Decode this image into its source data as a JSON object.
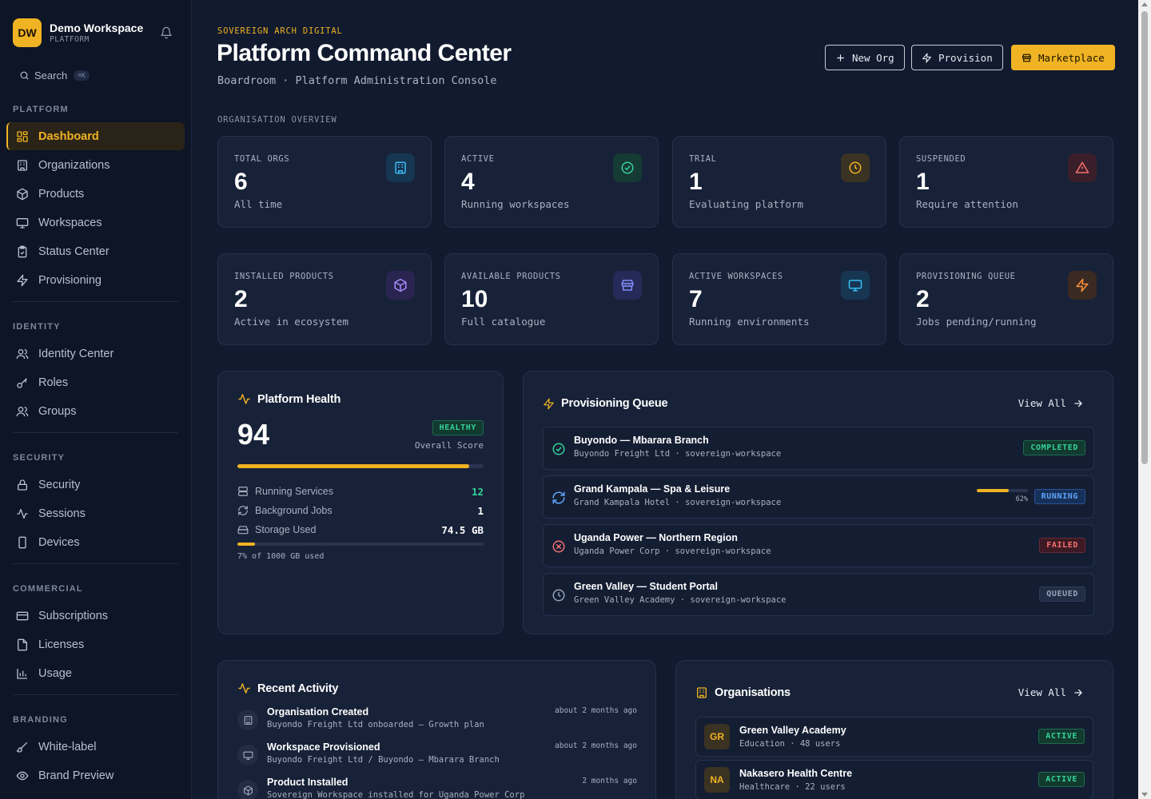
{
  "workspace": {
    "initials": "DW",
    "name": "Demo Workspace",
    "sub": "PLATFORM"
  },
  "search": {
    "label": "Search",
    "shortcut": "⌘K"
  },
  "sidebar": {
    "sections": [
      {
        "title": "PLATFORM",
        "items": [
          "Dashboard",
          "Organizations",
          "Products",
          "Workspaces",
          "Status Center",
          "Provisioning"
        ]
      },
      {
        "title": "IDENTITY",
        "items": [
          "Identity Center",
          "Roles",
          "Groups"
        ]
      },
      {
        "title": "SECURITY",
        "items": [
          "Security",
          "Sessions",
          "Devices"
        ]
      },
      {
        "title": "COMMERCIAL",
        "items": [
          "Subscriptions",
          "Licenses",
          "Usage"
        ]
      },
      {
        "title": "BRANDING",
        "items": [
          "White-label",
          "Brand Preview"
        ]
      }
    ]
  },
  "header": {
    "eyebrow": "SOVEREIGN ARCH DIGITAL",
    "title": "Platform Command Center",
    "subtitle": "Boardroom · Platform Administration Console",
    "buttons": {
      "new_org": "New Org",
      "provision": "Provision",
      "marketplace": "Marketplace"
    }
  },
  "overview_label": "ORGANISATION OVERVIEW",
  "stats": [
    {
      "label": "TOTAL ORGS",
      "value": "6",
      "sub": "All time",
      "color": "#38bdf8"
    },
    {
      "label": "ACTIVE",
      "value": "4",
      "sub": "Running workspaces",
      "color": "#34d399"
    },
    {
      "label": "TRIAL",
      "value": "1",
      "sub": "Evaluating platform",
      "color": "#f0b323"
    },
    {
      "label": "SUSPENDED",
      "value": "1",
      "sub": "Require attention",
      "color": "#f87171"
    },
    {
      "label": "INSTALLED PRODUCTS",
      "value": "2",
      "sub": "Active in ecosystem",
      "color": "#a78bfa"
    },
    {
      "label": "AVAILABLE PRODUCTS",
      "value": "10",
      "sub": "Full catalogue",
      "color": "#818cf8"
    },
    {
      "label": "ACTIVE WORKSPACES",
      "value": "7",
      "sub": "Running environments",
      "color": "#38bdf8"
    },
    {
      "label": "PROVISIONING QUEUE",
      "value": "2",
      "sub": "Jobs pending/running",
      "color": "#fb923c"
    }
  ],
  "health": {
    "title": "Platform Health",
    "score": "94",
    "score_fraction": 0.94,
    "badge": "HEALTHY",
    "score_label": "Overall Score",
    "metrics": [
      {
        "label": "Running Services",
        "value": "12"
      },
      {
        "label": "Background Jobs",
        "value": "1"
      },
      {
        "label": "Storage Used",
        "value": "74.5 GB"
      }
    ],
    "storage_fraction": 0.07,
    "storage_note": "7% of 1000 GB used"
  },
  "queue": {
    "title": "Provisioning Queue",
    "view_all": "View All",
    "items": [
      {
        "title": "Buyondo — Mbarara Branch",
        "sub": "Buyondo Freight Ltd · sovereign-workspace",
        "status": "COMPLETED"
      },
      {
        "title": "Grand Kampala — Spa & Leisure",
        "sub": "Grand Kampala Hotel · sovereign-workspace",
        "status": "RUNNING",
        "progress": "62%",
        "progress_fraction": 0.62
      },
      {
        "title": "Uganda Power — Northern Region",
        "sub": "Uganda Power Corp · sovereign-workspace",
        "status": "FAILED"
      },
      {
        "title": "Green Valley — Student Portal",
        "sub": "Green Valley Academy · sovereign-workspace",
        "status": "QUEUED"
      }
    ]
  },
  "activity": {
    "title": "Recent Activity",
    "items": [
      {
        "title": "Organisation Created",
        "sub": "Buyondo Freight Ltd onboarded — Growth plan",
        "time": "about 2 months ago"
      },
      {
        "title": "Workspace Provisioned",
        "sub": "Buyondo Freight Ltd / Buyondo — Mbarara Branch",
        "time": "about 2 months ago"
      },
      {
        "title": "Product Installed",
        "sub": "Sovereign Workspace installed for Uganda Power Corp",
        "time": "2 months ago"
      }
    ]
  },
  "orgs": {
    "title": "Organisations",
    "view_all": "View All",
    "items": [
      {
        "initials": "GR",
        "name": "Green Valley Academy",
        "sub": "Education · 48 users",
        "status": "ACTIVE"
      },
      {
        "initials": "NA",
        "name": "Nakasero Health Centre",
        "sub": "Healthcare · 22 users",
        "status": "ACTIVE"
      }
    ]
  }
}
